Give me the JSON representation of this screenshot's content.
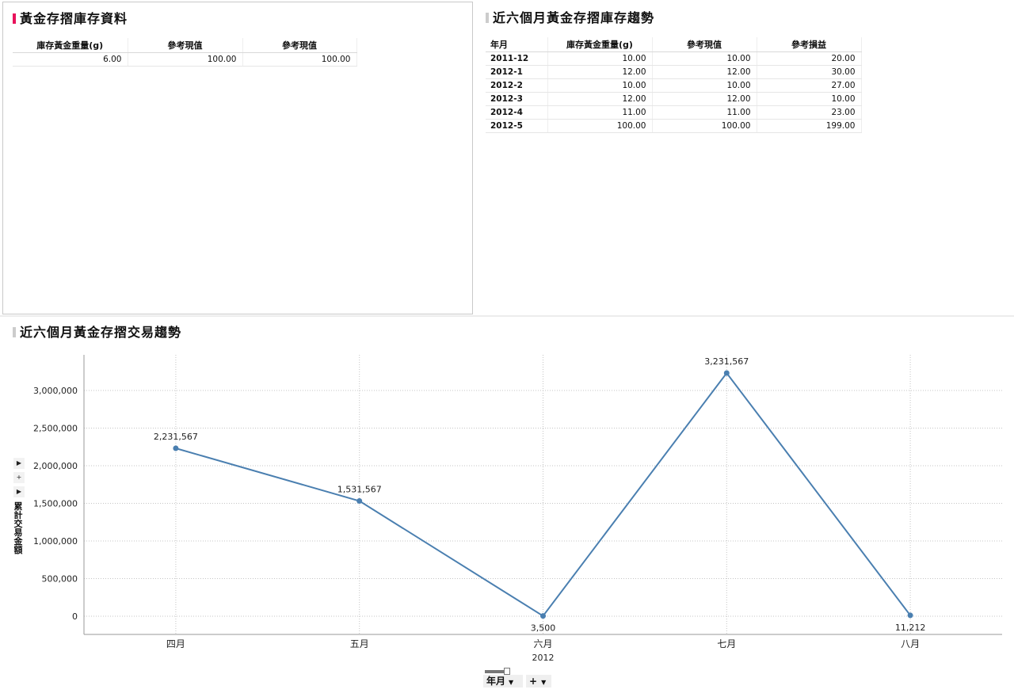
{
  "inventory_panel": {
    "title": "黃金存摺庫存資料",
    "accent_color": "#e8115b",
    "columns": [
      "庫存黃金重量(g)",
      "參考現值",
      "參考現值"
    ],
    "rows": [
      [
        "6.00",
        "100.00",
        "100.00"
      ]
    ]
  },
  "trend_panel": {
    "title": "近六個月黃金存摺庫存趨勢",
    "accent_color": "#cccccc",
    "columns": [
      "年月",
      "庫存黃金重量(g)",
      "參考現值",
      "參考損益"
    ],
    "rows": [
      [
        "2011-12",
        "10.00",
        "10.00",
        "20.00"
      ],
      [
        "2012-1",
        "12.00",
        "12.00",
        "30.00"
      ],
      [
        "2012-2",
        "10.00",
        "10.00",
        "27.00"
      ],
      [
        "2012-3",
        "12.00",
        "12.00",
        "10.00"
      ],
      [
        "2012-4",
        "11.00",
        "11.00",
        "23.00"
      ],
      [
        "2012-5",
        "100.00",
        "100.00",
        "199.00"
      ]
    ]
  },
  "chart_panel": {
    "title": "近六個月黃金存摺交易趨勢",
    "accent_color": "#cccccc",
    "ylabel": "累計交易金額",
    "side_controls": [
      "expand-arrow",
      "plus",
      "expand-arrow"
    ],
    "bottom_controls": {
      "dimension_label": "年月",
      "add_label": "+"
    }
  },
  "chart_data": {
    "type": "line",
    "categories": [
      "四月",
      "五月",
      "六月",
      "七月",
      "八月"
    ],
    "group_label": "2012",
    "series": [
      {
        "name": "",
        "values": [
          2231567,
          1531567,
          3500,
          3231567,
          11212
        ],
        "labels": [
          "2,231,567",
          "1,531,567",
          "3,500",
          "3,231,567",
          "11,212"
        ],
        "color": "#4a7fb0"
      }
    ],
    "title": "",
    "xlabel": "",
    "ylabel": "累計交易金額",
    "ylim": [
      0,
      3000000
    ],
    "yticks": [
      0,
      500000,
      1000000,
      1500000,
      2000000,
      2500000,
      3000000
    ],
    "ytick_labels": [
      "0",
      "500,000",
      "1,000,000",
      "1,500,000",
      "2,000,000",
      "2,500,000",
      "3,000,000"
    ],
    "grid": true,
    "legend": "none"
  }
}
